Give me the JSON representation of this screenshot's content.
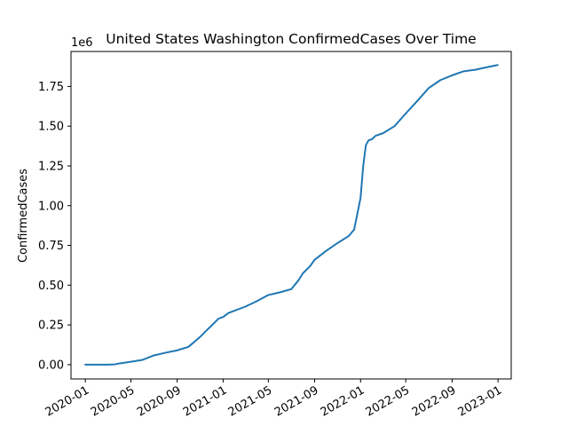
{
  "chart_data": {
    "type": "line",
    "title": "United States Washington ConfirmedCases Over Time",
    "xlabel": "",
    "ylabel": "ConfirmedCases",
    "y_offset_label": "1e6",
    "y_scale": 1000000,
    "xlim": [
      "2019-11-24",
      "2023-02-05"
    ],
    "ylim": [
      -90000,
      1970000
    ],
    "grid": false,
    "x_ticks": [
      "2020-01",
      "2020-05",
      "2020-09",
      "2021-01",
      "2021-05",
      "2021-09",
      "2022-01",
      "2022-05",
      "2022-09",
      "2023-01"
    ],
    "y_ticks": [
      0,
      250000,
      500000,
      750000,
      1000000,
      1250000,
      1500000,
      1750000
    ],
    "y_tick_labels": [
      "0.00",
      "0.25",
      "0.50",
      "0.75",
      "1.00",
      "1.25",
      "1.50",
      "1.75"
    ],
    "series": [
      {
        "color": "#1f77b4",
        "x": [
          "2020-01-01",
          "2020-02-01",
          "2020-03-01",
          "2020-03-20",
          "2020-04-01",
          "2020-05-01",
          "2020-06-01",
          "2020-07-01",
          "2020-08-01",
          "2020-09-01",
          "2020-10-01",
          "2020-11-01",
          "2020-11-20",
          "2020-12-01",
          "2020-12-20",
          "2021-01-01",
          "2021-01-15",
          "2021-02-01",
          "2021-03-01",
          "2021-04-01",
          "2021-05-01",
          "2021-06-01",
          "2021-07-01",
          "2021-07-20",
          "2021-08-01",
          "2021-08-20",
          "2021-09-01",
          "2021-10-01",
          "2021-11-01",
          "2021-12-01",
          "2021-12-15",
          "2022-01-01",
          "2022-01-08",
          "2022-01-15",
          "2022-01-22",
          "2022-02-01",
          "2022-02-10",
          "2022-03-01",
          "2022-04-01",
          "2022-05-01",
          "2022-06-01",
          "2022-07-01",
          "2022-08-01",
          "2022-09-01",
          "2022-10-01",
          "2022-11-01",
          "2022-12-01",
          "2022-12-31"
        ],
        "y": [
          0,
          0,
          0,
          2000,
          8000,
          18000,
          30000,
          58000,
          75000,
          90000,
          112000,
          175000,
          220000,
          245000,
          290000,
          300000,
          325000,
          340000,
          365000,
          400000,
          438000,
          455000,
          475000,
          530000,
          575000,
          620000,
          660000,
          715000,
          765000,
          810000,
          850000,
          1050000,
          1250000,
          1380000,
          1410000,
          1420000,
          1440000,
          1455000,
          1500000,
          1580000,
          1660000,
          1740000,
          1790000,
          1820000,
          1845000,
          1855000,
          1870000,
          1885000
        ]
      }
    ]
  }
}
